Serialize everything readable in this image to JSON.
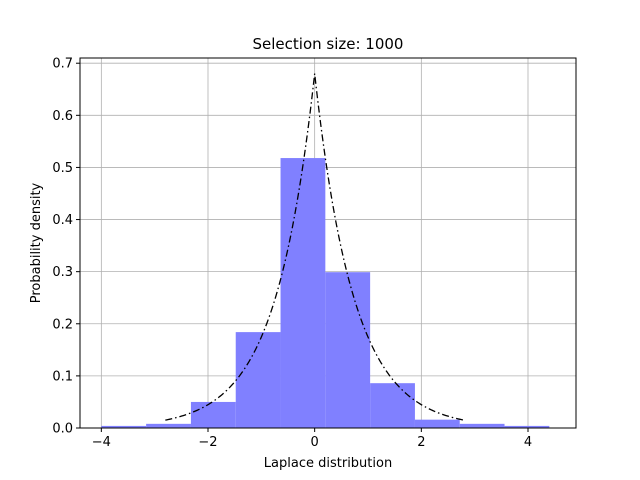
{
  "chart_data": {
    "type": "bar",
    "title": "Selection size: 1000",
    "xlabel": "Laplace distribution",
    "ylabel": "Probability density",
    "xlim": [
      -4.4,
      4.9
    ],
    "ylim": [
      0,
      0.71
    ],
    "grid": true,
    "xticks": [
      -4,
      -2,
      0,
      2,
      4
    ],
    "xtick_labels": [
      "−4",
      "−2",
      "0",
      "2",
      "4"
    ],
    "yticks": [
      0.0,
      0.1,
      0.2,
      0.3,
      0.4,
      0.5,
      0.6,
      0.7
    ],
    "ytick_labels": [
      "0.0",
      "0.1",
      "0.2",
      "0.3",
      "0.4",
      "0.5",
      "0.6",
      "0.7"
    ],
    "series": [
      {
        "kind": "histogram",
        "color": "#8080ff",
        "bin_edges": [
          -4.0,
          -3.16,
          -2.32,
          -1.48,
          -0.64,
          0.2,
          1.04,
          1.88,
          2.72,
          3.56,
          4.4
        ],
        "values": [
          0.004,
          0.008,
          0.05,
          0.184,
          0.518,
          0.299,
          0.086,
          0.016,
          0.008,
          0.004
        ]
      },
      {
        "kind": "line",
        "style": "dashdot",
        "color": "#000000",
        "function": "laplace_pdf",
        "x_range": [
          -2.8,
          2.8
        ],
        "peak": 0.68
      }
    ]
  }
}
